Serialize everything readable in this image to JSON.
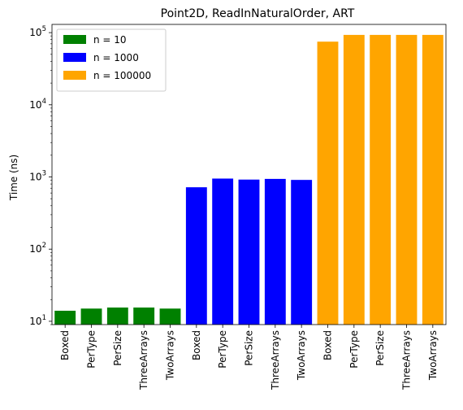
{
  "chart_data": {
    "type": "bar",
    "title": "Point2D, ReadInNaturalOrder, ART",
    "xlabel": "",
    "ylabel": "Time (ns)",
    "yscale": "log",
    "ylim": [
      9,
      130000
    ],
    "yticks": [
      {
        "value": 10,
        "base": "10",
        "exp": "1"
      },
      {
        "value": 100,
        "base": "10",
        "exp": "2"
      },
      {
        "value": 1000,
        "base": "10",
        "exp": "3"
      },
      {
        "value": 10000,
        "base": "10",
        "exp": "4"
      },
      {
        "value": 100000,
        "base": "10",
        "exp": "5"
      }
    ],
    "grid": false,
    "legend_position": "top-left",
    "series": [
      {
        "name": "n = 10",
        "color": "#008000",
        "categories": [
          "Boxed",
          "PerType",
          "PerSize",
          "ThreeArrays",
          "TwoArrays"
        ],
        "values": [
          14,
          15,
          15.5,
          15.5,
          15
        ]
      },
      {
        "name": "n = 1000",
        "color": "#0000ff",
        "categories": [
          "Boxed",
          "PerType",
          "PerSize",
          "ThreeArrays",
          "TwoArrays"
        ],
        "values": [
          720,
          950,
          920,
          940,
          910
        ]
      },
      {
        "name": "n = 100000",
        "color": "#ffa500",
        "categories": [
          "Boxed",
          "PerType",
          "PerSize",
          "ThreeArrays",
          "TwoArrays"
        ],
        "values": [
          75000,
          93000,
          93000,
          93000,
          93000
        ]
      }
    ]
  }
}
